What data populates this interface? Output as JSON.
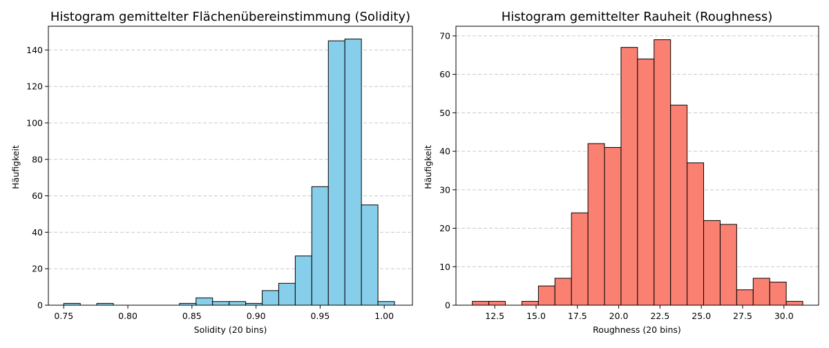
{
  "chart_data": [
    {
      "type": "bar",
      "subtype": "histogram",
      "title": "Histogram gemittelter Flächenübereinstimmung (Solidity)",
      "xlabel": "Solidity (20 bins)",
      "ylabel": "Häufigkeit",
      "bins_start": 0.75,
      "bin_width": 0.0129,
      "values": [
        1,
        0,
        1,
        0,
        0,
        0,
        0,
        1,
        4,
        2,
        2,
        1,
        8,
        12,
        27,
        65,
        145,
        146,
        55,
        2
      ],
      "xlim": [
        0.738,
        1.022
      ],
      "ylim": [
        0,
        153
      ],
      "xticks": [
        0.75,
        0.8,
        0.85,
        0.9,
        0.95,
        1.0
      ],
      "xtick_labels": [
        "0.75",
        "0.80",
        "0.85",
        "0.90",
        "0.95",
        "1.00"
      ],
      "yticks": [
        0,
        20,
        40,
        60,
        80,
        100,
        120,
        140
      ],
      "ytick_labels": [
        "0",
        "20",
        "40",
        "60",
        "80",
        "100",
        "120",
        "140"
      ],
      "bar_color": "#87ceeb",
      "edge_color": "#000000",
      "grid": "y-dashed"
    },
    {
      "type": "bar",
      "subtype": "histogram",
      "title": "Histogram gemittelter Rauheit (Roughness)",
      "xlabel": "Roughness (20 bins)",
      "ylabel": "Häufigkeit",
      "bins_start": 11.14,
      "bin_width": 1.0,
      "values": [
        1,
        1,
        0,
        1,
        5,
        7,
        24,
        42,
        41,
        67,
        64,
        69,
        52,
        37,
        22,
        21,
        4,
        7,
        6,
        1
      ],
      "xlim": [
        10.15,
        32.1
      ],
      "ylim": [
        0,
        72.5
      ],
      "xticks": [
        12.5,
        15.0,
        17.5,
        20.0,
        22.5,
        25.0,
        27.5,
        30.0
      ],
      "xtick_labels": [
        "12.5",
        "15.0",
        "17.5",
        "20.0",
        "22.5",
        "25.0",
        "27.5",
        "30.0"
      ],
      "yticks": [
        0,
        10,
        20,
        30,
        40,
        50,
        60,
        70
      ],
      "ytick_labels": [
        "0",
        "10",
        "20",
        "30",
        "40",
        "50",
        "60",
        "70"
      ],
      "bar_color": "#fa8072",
      "edge_color": "#000000",
      "grid": "y-dashed"
    }
  ]
}
